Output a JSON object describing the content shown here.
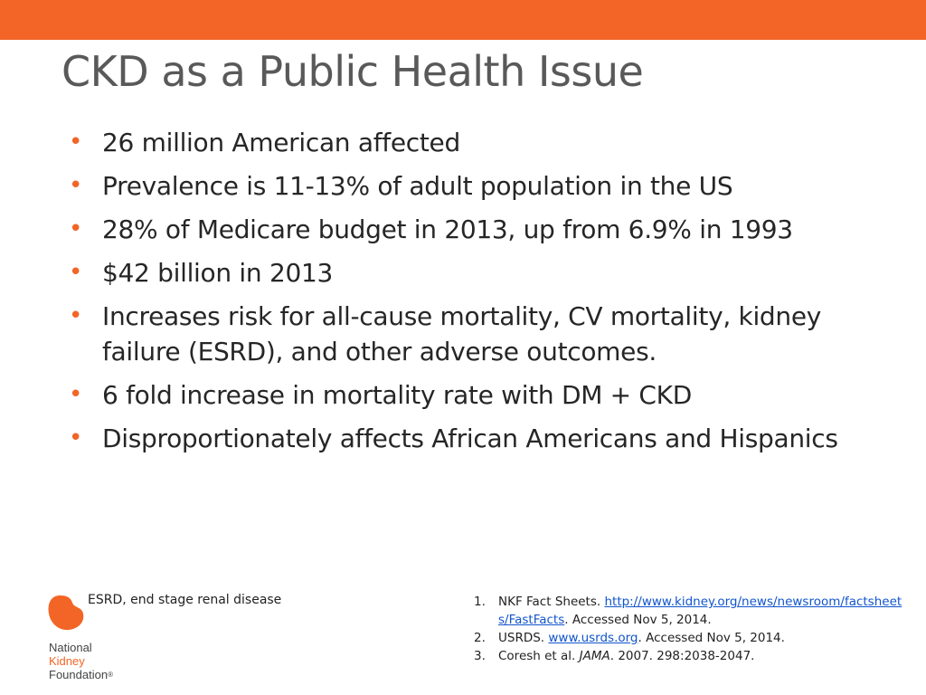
{
  "slide": {
    "title": "CKD as a Public Health Issue",
    "bullets": [
      "26 million American affected",
      "Prevalence is 11-13% of adult population in the US",
      "28% of Medicare budget in 2013, up from 6.9% in 1993",
      "$42 billion in 2013",
      "Increases risk for all-cause mortality, CV mortality, kidney failure (ESRD), and other adverse outcomes.",
      "6 fold increase in mortality rate with DM + CKD",
      "Disproportionately affects African Americans and Hispanics"
    ],
    "bullet_symbol": "•",
    "abbreviation_note": "ESRD, end stage renal disease",
    "references": [
      {
        "num": "1.",
        "text_before": "NKF Fact Sheets. ",
        "link": "http://www.kidney.org/news/newsroom/factsheets/FastFacts",
        "text_after": ". Accessed Nov 5, 2014."
      },
      {
        "num": "2.",
        "text_before": "USRDS. ",
        "link": "www.usrds.org",
        "text_after": ". Accessed Nov 5, 2014."
      },
      {
        "num": "3.",
        "text_before": "Coresh et al. ",
        "journal": "JAMA",
        "text_after": ". 2007. 298:2038-2047."
      }
    ]
  },
  "logo": {
    "line1": "National",
    "line2": "Kidney",
    "line3": "Foundation",
    "mark": "®",
    "icon": "kidney-icon"
  },
  "colors": {
    "accent": "#f26526",
    "title": "#595959",
    "body_text": "#262626",
    "link": "#1155cc"
  }
}
